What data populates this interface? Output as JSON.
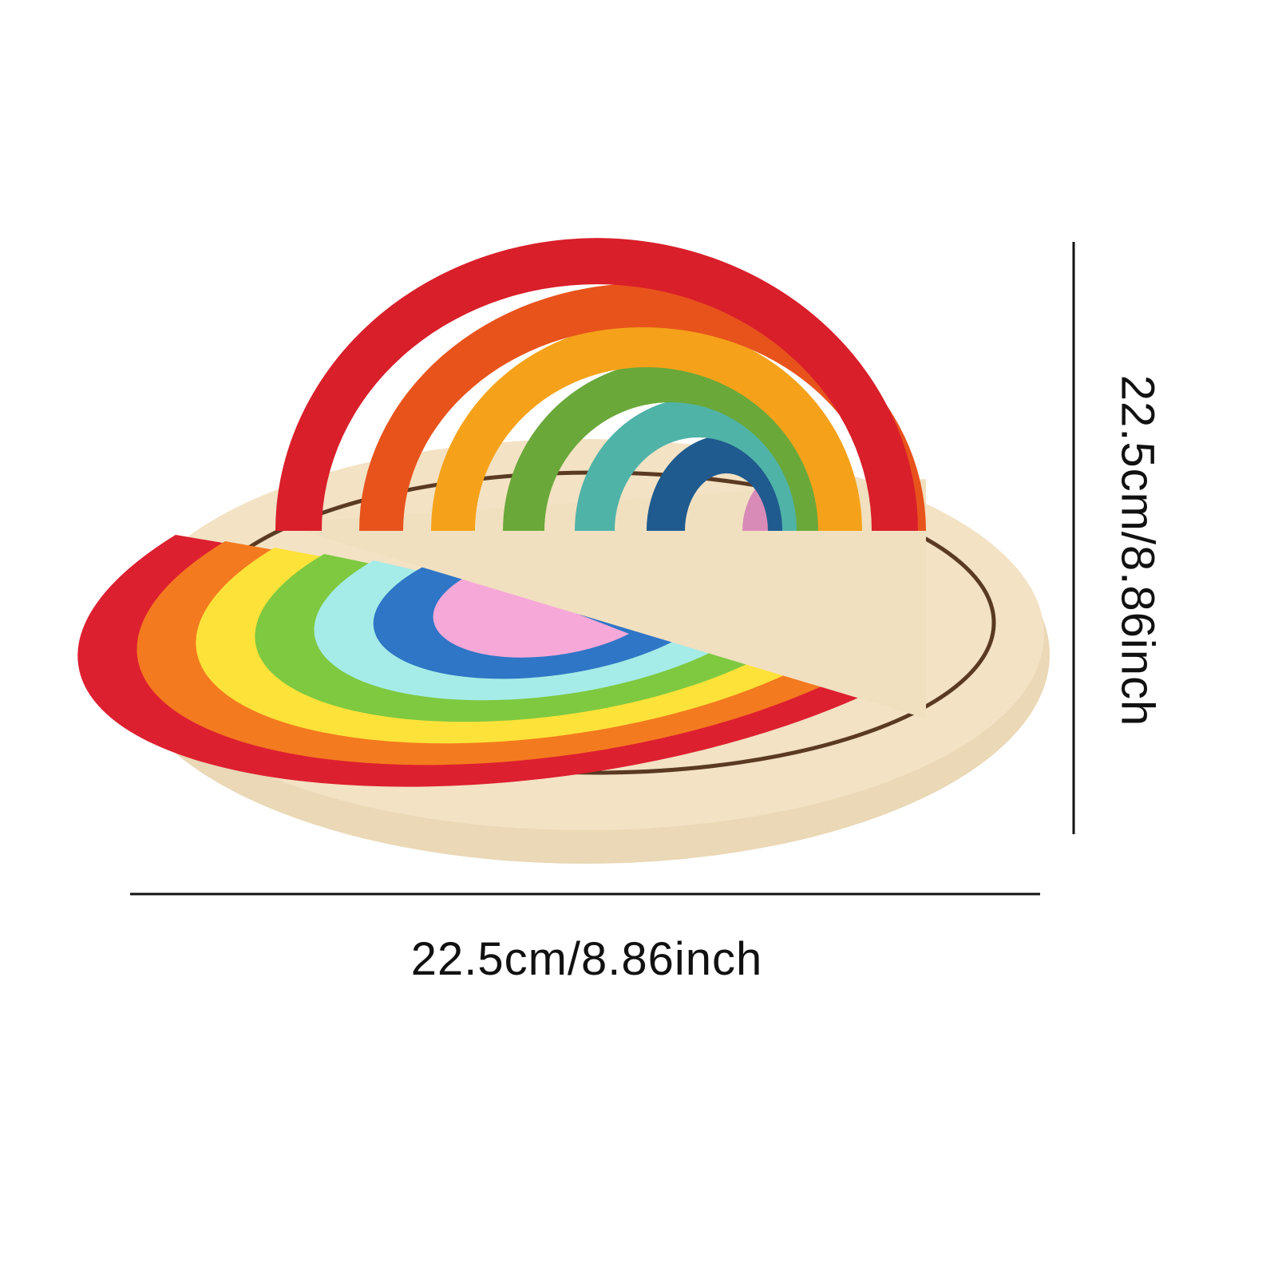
{
  "dimensions": {
    "width_label": "22.5cm/8.86inch",
    "height_label": "22.5cm/8.86inch"
  },
  "colors": {
    "background": "#ffffff",
    "line": "#111111",
    "wood": "#f3e2c4",
    "wood_edge": "#e8d3ad",
    "groove": "#5a3a22"
  },
  "arch_colors": [
    "#d91f2a",
    "#e8531c",
    "#f5a21a",
    "#6aa83a",
    "#4fb3a8",
    "#1f5b8f",
    "#d98bb8"
  ],
  "flat_colors": [
    "#dd2030",
    "#f47a1f",
    "#fde23a",
    "#7ec940",
    "#a5ece8",
    "#2f76c6",
    "#f6a8d8"
  ]
}
